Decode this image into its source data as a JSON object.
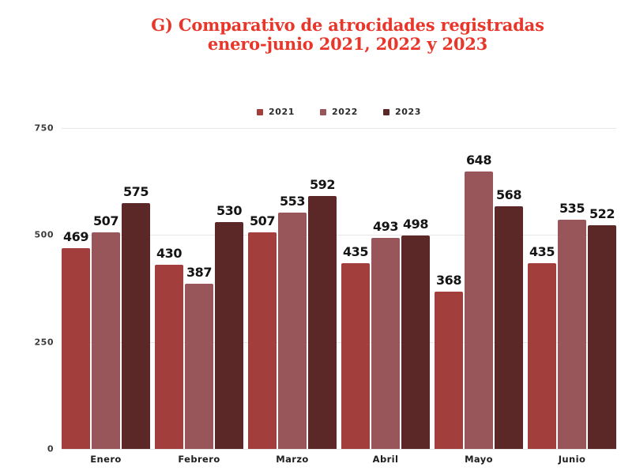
{
  "title": {
    "line1": "G) Comparativo de atrocidades registradas",
    "line2": "enero-junio 2021, 2022 y 2023",
    "color": "#e8362b"
  },
  "colors": {
    "series_2021": "#a23e3b",
    "series_2022": "#99565a",
    "series_2023": "#5c2727",
    "gridline": "#e7e7e7",
    "value_label": "#141414"
  },
  "chart_data": {
    "type": "bar",
    "title": "G) Comparativo de atrocidades registradas enero-junio 2021, 2022 y 2023",
    "categories": [
      "Enero",
      "Febrero",
      "Marzo",
      "Abril",
      "Mayo",
      "Junio"
    ],
    "series": [
      {
        "name": "2021",
        "color": "#a23e3b",
        "values": [
          469,
          430,
          507,
          435,
          368,
          435
        ]
      },
      {
        "name": "2022",
        "color": "#99565a",
        "values": [
          507,
          387,
          553,
          493,
          648,
          535
        ]
      },
      {
        "name": "2023",
        "color": "#5c2727",
        "values": [
          575,
          530,
          592,
          498,
          568,
          522
        ]
      }
    ],
    "xlabel": "",
    "ylabel": "",
    "ylim": [
      0,
      750
    ],
    "yticks": [
      0,
      250,
      500,
      750
    ],
    "grid": true,
    "legend_position": "top-center",
    "value_labels": true
  }
}
